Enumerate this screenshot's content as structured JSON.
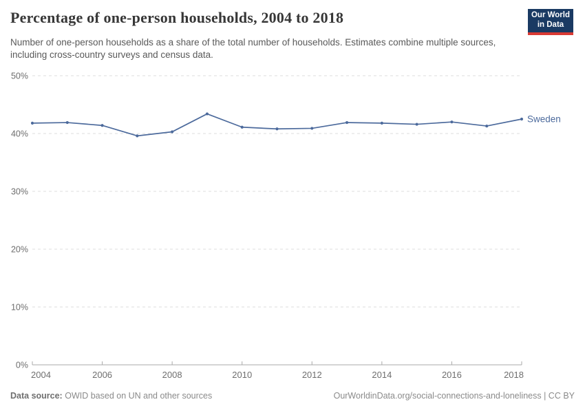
{
  "header": {
    "title": "Percentage of one-person households, 2004 to 2018",
    "subtitle": "Number of one-person households as a share of the total number of households. Estimates combine multiple sources, including cross-country surveys and census data.",
    "logo": {
      "line1": "Our World",
      "line2": "in Data",
      "bg_color": "#1a3a63",
      "accent_color": "#d93a34"
    }
  },
  "chart_data": {
    "type": "line",
    "title": "Percentage of one-person households, 2004 to 2018",
    "x": [
      2004,
      2005,
      2006,
      2007,
      2008,
      2009,
      2010,
      2011,
      2012,
      2013,
      2014,
      2015,
      2016,
      2017,
      2018
    ],
    "series": [
      {
        "name": "Sweden",
        "color": "#4C6A9C",
        "values": [
          41.8,
          41.9,
          41.4,
          39.6,
          40.3,
          43.4,
          41.1,
          40.8,
          40.9,
          41.9,
          41.8,
          41.6,
          42.0,
          41.3,
          42.5
        ]
      }
    ],
    "xlabel": "",
    "ylabel": "",
    "ylim": [
      0,
      50
    ],
    "ytick_values": [
      0,
      10,
      20,
      30,
      40,
      50
    ],
    "ytick_labels": [
      "0%",
      "10%",
      "20%",
      "30%",
      "40%",
      "50%"
    ],
    "xtick_values": [
      2004,
      2006,
      2008,
      2010,
      2012,
      2014,
      2016,
      2018
    ],
    "grid": "horizontal-dashed",
    "legend_position": "end-of-line-label"
  },
  "footer": {
    "datasource_label": "Data source:",
    "datasource_text": "OWID based on UN and other sources",
    "link_text": "OurWorldinData.org/social-connections-and-loneliness | CC BY"
  }
}
